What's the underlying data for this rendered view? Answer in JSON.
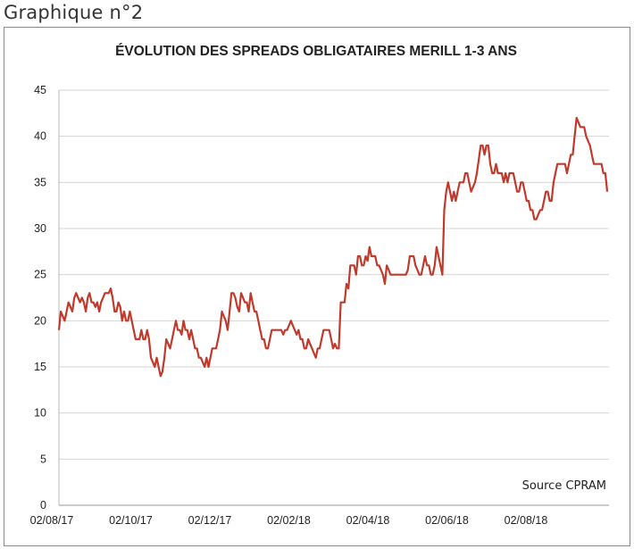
{
  "caption": "Graphique n°2",
  "chart_data": {
    "type": "line",
    "title": "ÉVOLUTION DES SPREADS OBLIGATAIRES MERILL 1-3 ANS",
    "source": "Source CPRAM",
    "xlabel": "",
    "ylabel": "",
    "ylim": [
      0,
      45
    ],
    "yticks": [
      0,
      5,
      10,
      15,
      20,
      25,
      30,
      35,
      40,
      45
    ],
    "xticks": [
      "02/08/17",
      "02/10/17",
      "02/12/17",
      "02/02/18",
      "02/04/18",
      "02/06/18",
      "02/08/18"
    ],
    "grid": "horizontal",
    "line_color": "#c0392b",
    "series": [
      {
        "values": [
          19,
          21,
          20.5,
          20,
          21,
          22,
          21.5,
          21,
          22.5,
          23,
          22.5,
          22,
          22.5,
          22,
          21,
          22.5,
          23,
          22,
          22,
          21.5,
          22,
          21,
          22,
          22.5,
          23,
          23,
          23,
          23.5,
          22.5,
          21,
          21,
          22,
          21.5,
          20,
          21,
          20,
          20,
          21,
          20,
          19,
          18,
          18,
          18,
          19,
          18,
          18,
          19,
          18,
          16,
          15.5,
          15,
          16,
          15,
          14,
          14.5,
          16,
          18,
          17.5,
          17,
          18,
          19,
          20,
          19,
          19,
          18.5,
          20,
          19,
          19,
          18,
          19,
          18,
          17,
          17,
          16,
          16,
          15.5,
          15,
          16,
          15,
          16,
          17,
          17,
          17,
          18,
          19,
          21,
          20.5,
          20,
          19,
          21,
          23,
          23,
          22.5,
          21.5,
          21,
          23,
          22.5,
          22,
          22,
          21,
          23,
          22,
          21,
          21,
          20,
          19,
          18,
          18,
          17,
          17,
          18,
          19,
          19,
          19,
          19,
          19,
          19,
          18.5,
          19,
          19,
          19.5,
          20,
          19.5,
          19,
          18.5,
          19,
          18,
          18,
          17,
          17,
          18,
          17.5,
          17,
          16.5,
          16,
          17,
          17,
          18,
          19,
          19,
          19,
          19,
          18,
          17,
          17.5,
          17,
          17,
          22,
          22,
          22,
          24,
          23.5,
          26,
          26,
          26,
          25,
          27,
          27,
          26,
          26,
          27,
          26.5,
          28,
          27,
          27,
          27,
          26,
          26,
          25.5,
          25,
          24,
          26,
          25.5,
          25,
          25,
          25,
          25,
          25,
          25,
          25,
          25,
          25,
          25.5,
          27,
          27,
          27,
          26,
          25.5,
          25,
          25,
          26,
          27,
          26,
          26,
          25,
          25,
          26,
          28,
          27,
          26,
          25,
          32,
          34,
          35,
          34,
          33,
          34,
          33,
          34,
          35,
          35,
          35,
          36,
          36,
          35,
          34,
          34.5,
          35,
          36,
          37.5,
          39,
          39,
          38,
          39,
          39,
          37,
          36,
          36,
          37,
          36,
          36,
          36,
          35,
          36,
          35,
          36,
          36,
          36,
          35,
          34,
          34,
          35,
          35,
          34,
          33,
          33,
          32,
          32,
          31,
          31,
          31.5,
          32,
          32,
          33,
          34,
          34,
          33,
          33,
          35,
          36,
          37,
          37,
          37,
          37,
          37,
          36,
          37,
          38,
          38,
          40,
          42,
          41.5,
          41,
          41,
          41,
          40,
          39.5,
          39,
          38,
          37,
          37,
          37,
          37,
          37,
          36,
          36,
          34
        ]
      }
    ]
  }
}
